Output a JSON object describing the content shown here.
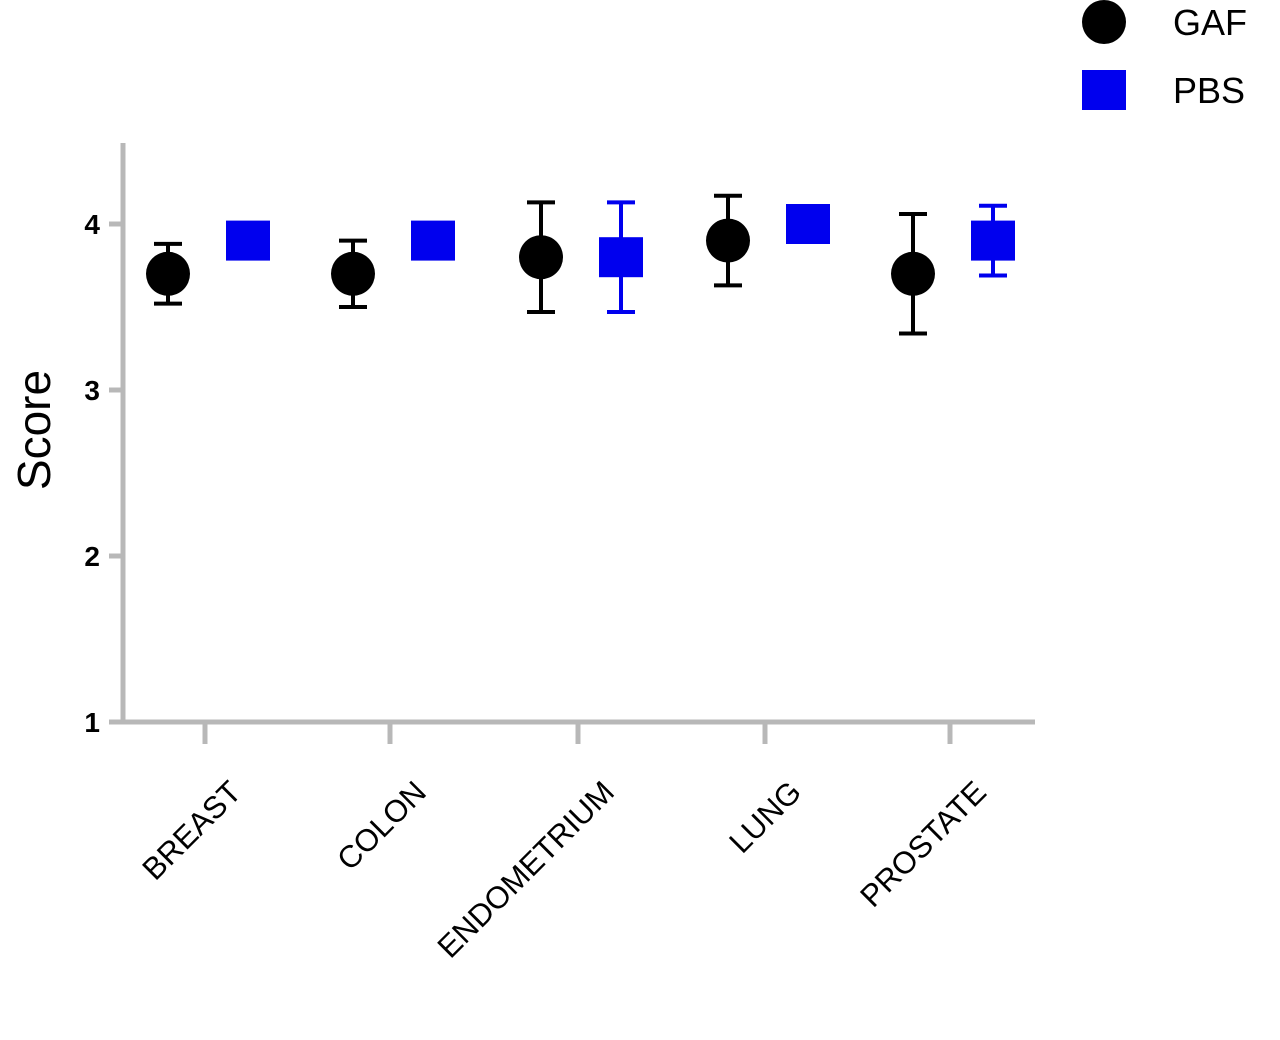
{
  "chart_data": {
    "type": "scatter",
    "categories": [
      "BREAST",
      "COLON",
      "ENDOMETRIUM",
      "LUNG",
      "PROSTATE"
    ],
    "series": [
      {
        "name": "GAF",
        "color": "#000000",
        "marker": "circle",
        "values": [
          3.7,
          3.7,
          3.8,
          3.9,
          3.7
        ],
        "error": [
          0.18,
          0.2,
          0.33,
          0.27,
          0.36
        ]
      },
      {
        "name": "PBS",
        "color": "#0000ee",
        "marker": "square",
        "values": [
          3.9,
          3.9,
          3.8,
          4.0,
          3.9
        ],
        "error": [
          0,
          0,
          0.33,
          0,
          0.21
        ]
      }
    ],
    "ylabel": "Score",
    "xlabel": "",
    "ylim": [
      1,
      4.5
    ],
    "yticks": [
      "1",
      "2",
      "3",
      "4"
    ],
    "legend_position": "top-right",
    "axis_color": "#b8b8b8",
    "grid": false
  }
}
